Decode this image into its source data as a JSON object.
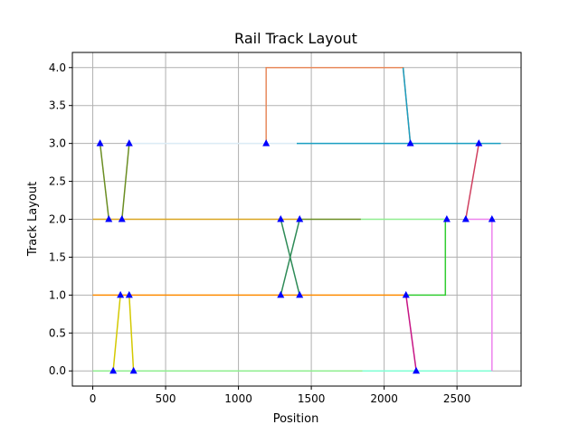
{
  "chart_data": {
    "type": "line",
    "title": "Rail Track Layout",
    "xlabel": "Position",
    "ylabel": "Track Layout",
    "xlim": [
      -140,
      2940
    ],
    "ylim": [
      -0.2,
      4.2
    ],
    "xticks": [
      0,
      500,
      1000,
      1500,
      2000,
      2500
    ],
    "yticks": [
      0.0,
      0.5,
      1.0,
      1.5,
      2.0,
      2.5,
      3.0,
      3.5,
      4.0
    ],
    "grid": true,
    "marker_color": "#0000ff",
    "series": [
      {
        "color": "#90ee90",
        "points": [
          [
            0,
            0
          ],
          [
            1850,
            0
          ]
        ]
      },
      {
        "color": "#7fffd4",
        "points": [
          [
            1850,
            0
          ],
          [
            2740,
            0
          ]
        ]
      },
      {
        "color": "#ff8c00",
        "points": [
          [
            0,
            1
          ],
          [
            2150,
            1
          ]
        ]
      },
      {
        "color": "#32cd32",
        "points": [
          [
            2150,
            1
          ],
          [
            2420,
            1
          ],
          [
            2420,
            2
          ]
        ]
      },
      {
        "color": "#daa520",
        "points": [
          [
            0,
            2
          ],
          [
            1420,
            2
          ]
        ]
      },
      {
        "color": "#6b8e23",
        "points": [
          [
            1420,
            2
          ],
          [
            1840,
            2
          ]
        ]
      },
      {
        "color": "#90ee90",
        "points": [
          [
            1840,
            2
          ],
          [
            2430,
            2
          ]
        ]
      },
      {
        "color": "#ee82ee",
        "points": [
          [
            2560,
            2
          ],
          [
            2740,
            2
          ],
          [
            2740,
            0
          ]
        ]
      },
      {
        "color": "#dcecf6",
        "points": [
          [
            250,
            3
          ],
          [
            1400,
            3
          ]
        ]
      },
      {
        "color": "#1a9fc2",
        "points": [
          [
            1400,
            3
          ],
          [
            2800,
            3
          ]
        ]
      },
      {
        "color": "#e88b5e",
        "points": [
          [
            1190,
            3
          ],
          [
            1190,
            4
          ],
          [
            2130,
            4
          ],
          [
            2180,
            3
          ]
        ]
      },
      {
        "color": "#6b8e23",
        "points": [
          [
            50,
            3
          ],
          [
            110,
            2
          ]
        ]
      },
      {
        "color": "#6b8e23",
        "points": [
          [
            250,
            3
          ],
          [
            200,
            2
          ]
        ]
      },
      {
        "color": "#d4c900",
        "points": [
          [
            140,
            0
          ],
          [
            190,
            1
          ]
        ]
      },
      {
        "color": "#d4c900",
        "points": [
          [
            280,
            0
          ],
          [
            250,
            1
          ]
        ]
      },
      {
        "color": "#2e8b57",
        "points": [
          [
            1290,
            2
          ],
          [
            1420,
            1
          ]
        ]
      },
      {
        "color": "#2e8b57",
        "points": [
          [
            1420,
            2
          ],
          [
            1290,
            1
          ]
        ]
      },
      {
        "color": "#c71585",
        "points": [
          [
            2150,
            1
          ],
          [
            2220,
            0
          ]
        ]
      },
      {
        "color": "#d04060",
        "points": [
          [
            2560,
            2
          ],
          [
            2650,
            3
          ]
        ]
      },
      {
        "color": "#1a9fc2",
        "points": [
          [
            2130,
            4
          ],
          [
            2180,
            3
          ]
        ]
      }
    ],
    "markers": [
      [
        50,
        3
      ],
      [
        250,
        3
      ],
      [
        110,
        2
      ],
      [
        200,
        2
      ],
      [
        190,
        1
      ],
      [
        250,
        1
      ],
      [
        140,
        0
      ],
      [
        280,
        0
      ],
      [
        1190,
        3
      ],
      [
        1290,
        2
      ],
      [
        1420,
        2
      ],
      [
        1290,
        1
      ],
      [
        1420,
        1
      ],
      [
        2150,
        1
      ],
      [
        2220,
        0
      ],
      [
        2180,
        3
      ],
      [
        2430,
        2
      ],
      [
        2560,
        2
      ],
      [
        2650,
        3
      ],
      [
        2740,
        2
      ]
    ]
  }
}
